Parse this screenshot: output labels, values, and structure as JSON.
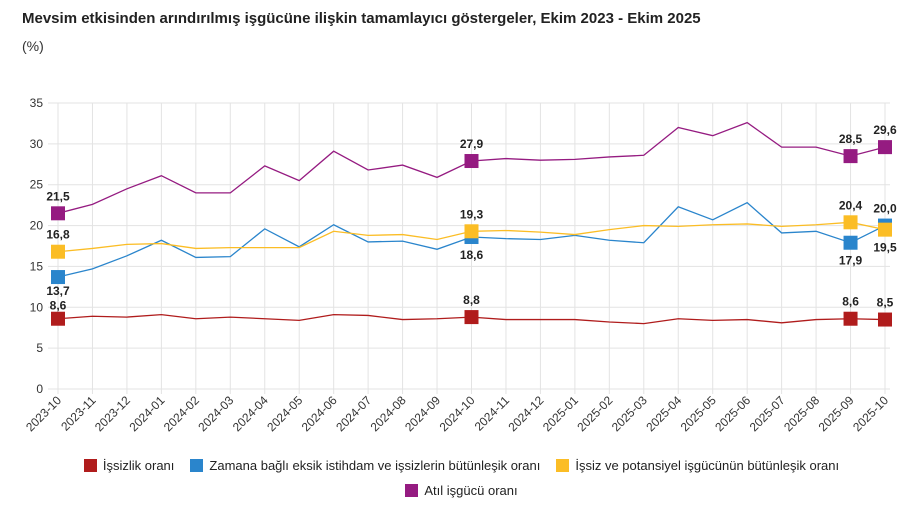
{
  "chart_data": {
    "type": "line",
    "title": "Mevsim etkisinden arındırılmış işgücüne ilişkin tamamlayıcı göstergeler, Ekim 2023 - Ekim 2025",
    "ylabel": "(%)",
    "ylim": [
      0,
      35
    ],
    "yticks": [
      0,
      5,
      10,
      15,
      20,
      25,
      30,
      35
    ],
    "grid": true,
    "legend_placement": "bottom",
    "categories": [
      "2023-10",
      "2023-11",
      "2023-12",
      "2024-01",
      "2024-02",
      "2024-03",
      "2024-04",
      "2024-05",
      "2024-06",
      "2024-07",
      "2024-08",
      "2024-09",
      "2024-10",
      "2024-11",
      "2024-12",
      "2025-01",
      "2025-02",
      "2025-03",
      "2025-04",
      "2025-05",
      "2025-06",
      "2025-07",
      "2025-08",
      "2025-09",
      "2025-10"
    ],
    "series": [
      {
        "name": "İşsizlik oranı",
        "color": "#b01c1c",
        "values": [
          8.6,
          8.9,
          8.8,
          9.1,
          8.6,
          8.8,
          8.6,
          8.4,
          9.1,
          9.0,
          8.5,
          8.6,
          8.8,
          8.5,
          8.5,
          8.5,
          8.2,
          8.0,
          8.6,
          8.4,
          8.5,
          8.1,
          8.5,
          8.6,
          8.5
        ],
        "labels": {
          "0": "8,6",
          "12": "8,8",
          "23": "8,6",
          "24": "8,5"
        },
        "label_pos": "above"
      },
      {
        "name": "Zamana bağlı eksik istihdam ve işsizlerin bütünleşik oranı",
        "color": "#2a85cc",
        "values": [
          13.7,
          14.7,
          16.3,
          18.2,
          16.1,
          16.2,
          19.6,
          17.4,
          20.1,
          18.0,
          18.1,
          17.1,
          18.6,
          18.4,
          18.3,
          18.8,
          18.2,
          17.9,
          22.3,
          20.7,
          22.8,
          19.1,
          19.3,
          17.9,
          20.0
        ],
        "labels": {
          "0": "13,7",
          "12": "18,6",
          "23": "17,9",
          "24": "20,0"
        },
        "label_pos": "below"
      },
      {
        "name": "İşsiz ve potansiyel işgücünün bütünleşik oranı",
        "color": "#fbbd25",
        "values": [
          16.8,
          17.2,
          17.7,
          17.8,
          17.2,
          17.3,
          17.3,
          17.3,
          19.3,
          18.8,
          18.9,
          18.3,
          19.3,
          19.4,
          19.2,
          18.9,
          19.5,
          20.0,
          19.9,
          20.1,
          20.2,
          19.9,
          20.1,
          20.4,
          19.5
        ],
        "labels": {
          "0": "16,8",
          "12": "19,3",
          "23": "20,4",
          "24": "19,5"
        },
        "label_pos": "above"
      },
      {
        "name": "Atıl işgücü oranı",
        "color": "#951b81",
        "values": [
          21.5,
          22.6,
          24.5,
          26.1,
          24.0,
          24.0,
          27.3,
          25.5,
          29.1,
          26.8,
          27.4,
          25.9,
          27.9,
          28.2,
          28.0,
          28.1,
          28.4,
          28.6,
          32.0,
          31.0,
          32.6,
          29.6,
          29.6,
          28.5,
          29.6
        ],
        "labels": {
          "0": "21,5",
          "12": "27,9",
          "23": "28,5",
          "24": "29,6"
        },
        "label_pos": "above"
      }
    ]
  }
}
